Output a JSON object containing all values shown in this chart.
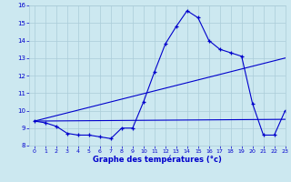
{
  "xlabel": "Graphe des températures (°c)",
  "background_color": "#cce8f0",
  "grid_color": "#aaccd8",
  "line_color": "#0000cc",
  "ylim": [
    8,
    16
  ],
  "xlim": [
    -0.5,
    23
  ],
  "yticks": [
    8,
    9,
    10,
    11,
    12,
    13,
    14,
    15,
    16
  ],
  "xticks": [
    0,
    1,
    2,
    3,
    4,
    5,
    6,
    7,
    8,
    9,
    10,
    11,
    12,
    13,
    14,
    15,
    16,
    17,
    18,
    19,
    20,
    21,
    22,
    23
  ],
  "series1_x": [
    0,
    1,
    2,
    3,
    4,
    5,
    6,
    7,
    8,
    9,
    10,
    11,
    12,
    13,
    14,
    15,
    16,
    17,
    18,
    19,
    20,
    21,
    22,
    23
  ],
  "series1_y": [
    9.4,
    9.3,
    9.1,
    8.7,
    8.6,
    8.6,
    8.5,
    8.4,
    9.0,
    9.0,
    10.5,
    12.2,
    13.8,
    14.8,
    15.7,
    15.3,
    14.0,
    13.5,
    13.3,
    13.1,
    10.4,
    8.6,
    8.6,
    10.0
  ],
  "series2_x": [
    0,
    23
  ],
  "series2_y": [
    9.4,
    13.0
  ],
  "series3_x": [
    0,
    23
  ],
  "series3_y": [
    9.4,
    9.5
  ]
}
